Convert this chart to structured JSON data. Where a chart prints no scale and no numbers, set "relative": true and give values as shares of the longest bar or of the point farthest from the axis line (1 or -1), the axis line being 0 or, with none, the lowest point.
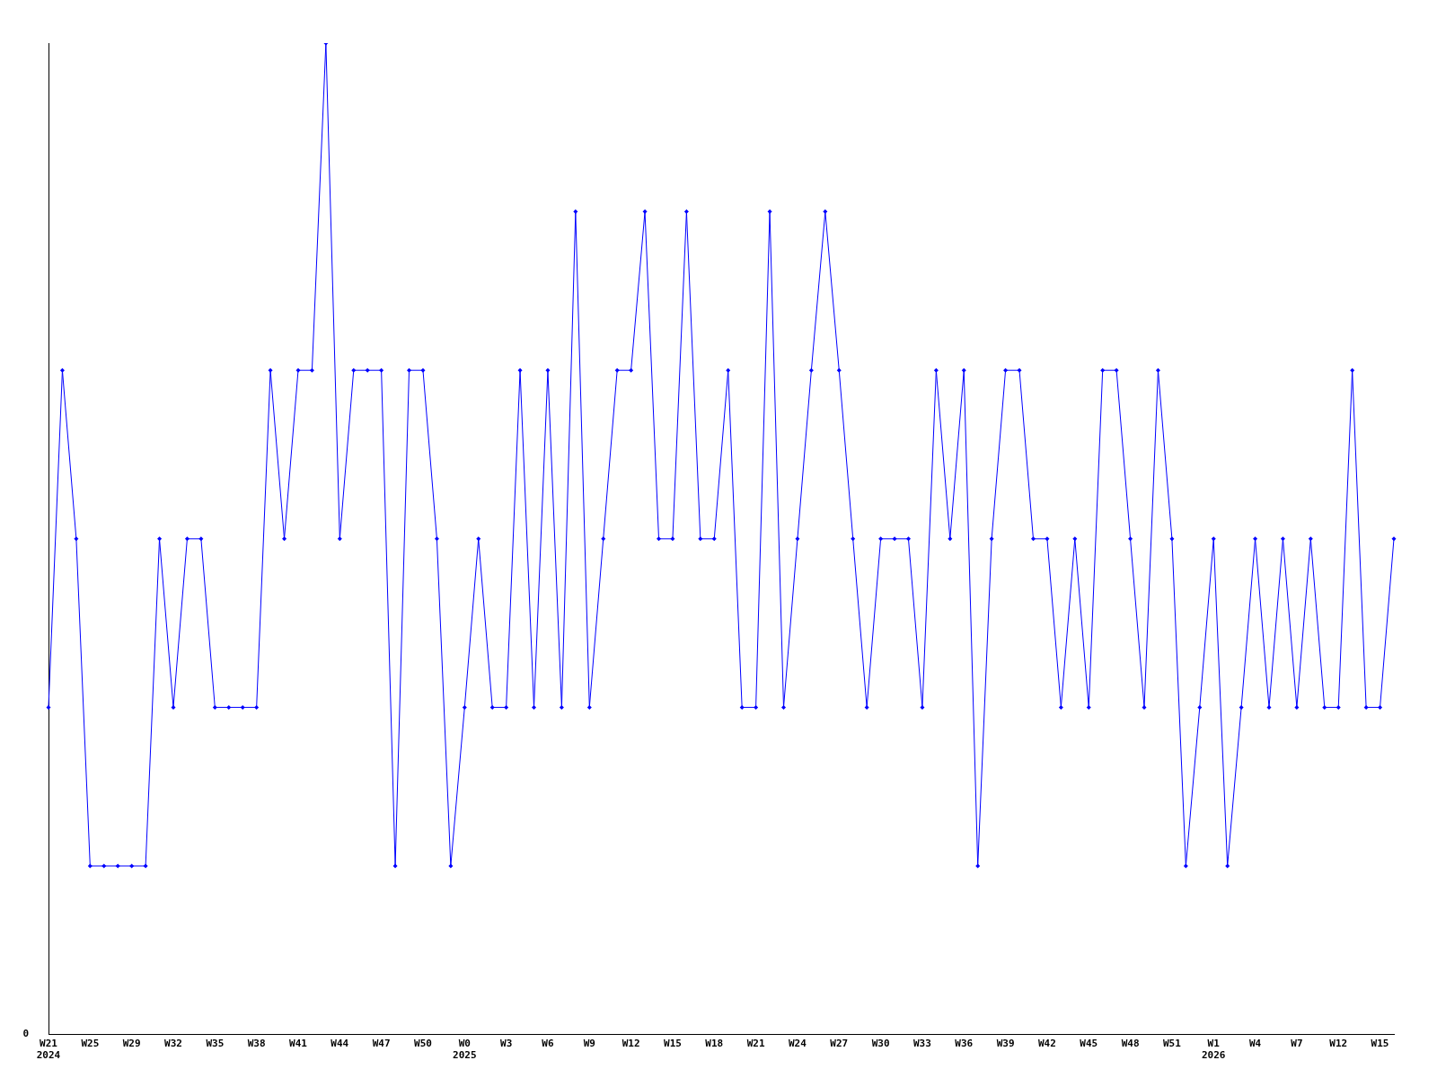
{
  "chart_data": {
    "type": "line",
    "relative": true,
    "marker": "diamond",
    "categories": [
      "W21\n2024",
      null,
      null,
      "W25",
      null,
      null,
      "W29",
      null,
      null,
      "W32",
      null,
      null,
      "W35",
      null,
      null,
      "W38",
      null,
      null,
      "W41",
      null,
      null,
      "W44",
      null,
      null,
      "W47",
      null,
      null,
      "W50",
      null,
      null,
      "W0\n2025",
      null,
      null,
      "W3",
      null,
      null,
      "W6",
      null,
      null,
      "W9",
      null,
      null,
      "W12",
      null,
      null,
      "W15",
      null,
      null,
      "W18",
      null,
      null,
      "W21",
      null,
      null,
      "W24",
      null,
      null,
      "W27",
      null,
      null,
      "W30",
      null,
      null,
      "W33",
      null,
      null,
      "W36",
      null,
      null,
      "W39",
      null,
      null,
      "W42",
      null,
      null,
      "W45",
      null,
      null,
      "W48",
      null,
      null,
      "W51",
      null,
      null,
      "W1\n2026",
      null,
      null,
      "W4",
      null,
      null,
      "W7",
      null,
      null,
      "W12",
      null,
      null,
      "W15",
      null
    ],
    "series": [
      {
        "color": "#0000ff",
        "values": [
          0.33,
          0.67,
          0.5,
          0.17,
          0.17,
          0.17,
          0.17,
          0.17,
          0.5,
          0.33,
          0.5,
          0.5,
          0.33,
          0.33,
          0.33,
          0.33,
          0.67,
          0.5,
          0.67,
          0.67,
          1,
          0.5,
          0.67,
          0.67,
          0.67,
          0.17,
          0.67,
          0.67,
          0.5,
          0.17,
          0.33,
          0.5,
          0.33,
          0.33,
          0.67,
          0.33,
          0.67,
          0.33,
          0.83,
          0.33,
          0.5,
          0.67,
          0.67,
          0.83,
          0.5,
          0.5,
          0.83,
          0.5,
          0.5,
          0.67,
          0.33,
          0.33,
          0.83,
          0.33,
          0.5,
          0.67,
          0.83,
          0.67,
          0.5,
          0.33,
          0.5,
          0.5,
          0.5,
          0.33,
          0.67,
          0.5,
          0.67,
          0.17,
          0.5,
          0.67,
          0.67,
          0.5,
          0.5,
          0.33,
          0.5,
          0.33,
          0.67,
          0.67,
          0.5,
          0.33,
          0.67,
          0.5,
          0.17,
          0.33,
          0.5,
          0.17,
          0.33,
          0.5,
          0.33,
          0.5,
          0.33,
          0.5,
          0.33,
          0.33,
          0.67,
          0.33,
          0.33,
          0.5
        ]
      }
    ],
    "annotations": [
      "0"
    ]
  }
}
